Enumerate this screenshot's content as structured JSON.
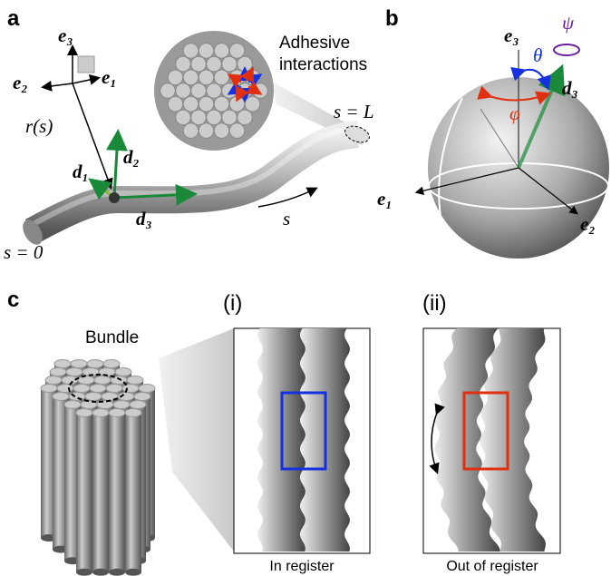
{
  "panel_a": {
    "label": "a",
    "e3": "e₃",
    "e1": "e₁",
    "e2": "e₂",
    "r": "r(s)",
    "d1": "d₁",
    "d2": "d₂",
    "d3": "d₃",
    "s0": "s = 0",
    "sL": "s = L",
    "s": "s",
    "adhesive_1": "Adhesive",
    "adhesive_2": "interactions"
  },
  "panel_b": {
    "label": "b",
    "e3": "e₃",
    "d3": "d₃",
    "theta": "θ",
    "psi": "ψ",
    "phi": "φ",
    "e1": "e₁",
    "e2": "e₂"
  },
  "panel_c": {
    "label": "c",
    "bundle": "Bundle",
    "sub_i": "(i)",
    "sub_ii": "(ii)",
    "caption_i": "In register",
    "caption_ii": "Out of register"
  }
}
